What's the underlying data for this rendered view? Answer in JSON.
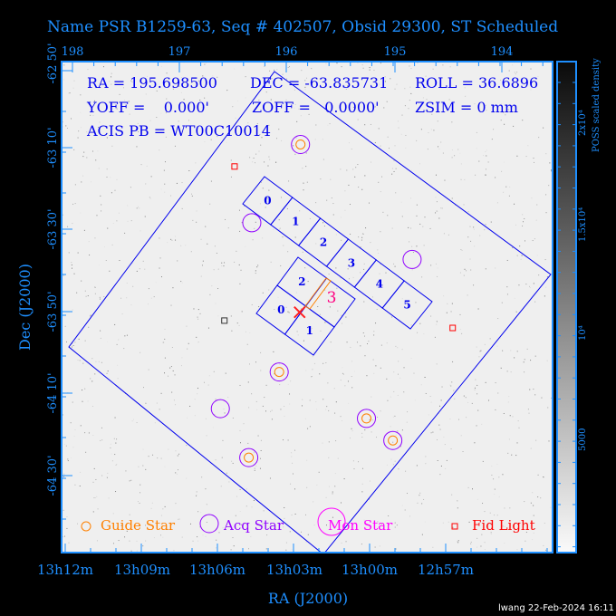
{
  "title": "Name PSR B1259-63, Seq # 402507, Obsid 29300, ST Scheduled",
  "info": {
    "ra": "RA = 195.698500",
    "dec": "DEC = -63.835731",
    "roll": "ROLL = 36.6896",
    "yoff": "YOFF =    0.000'",
    "zoff": "ZOFF =   0.0000'",
    "zsim": "ZSIM = 0 mm",
    "acis_pb": "ACIS PB = WT00C10014"
  },
  "footer": "lwang 22-Feb-2024 16:11",
  "colors": {
    "axis": "#1e8fff",
    "fov": "#0000ee",
    "guide": "#ff8000",
    "acq": "#9000ff",
    "mon": "#ff00ff",
    "fid": "#ff0000"
  },
  "chart_data": {
    "type": "scatter",
    "title": "Name PSR B1259-63, Seq # 402507, Obsid 29300, ST Scheduled",
    "xlabel": "RA (J2000)",
    "ylabel": "Dec (J2000)",
    "x_ticks_bottom": [
      "13h12m",
      "13h09m",
      "13h06m",
      "13h03m",
      "13h00m",
      "12h57m"
    ],
    "x_ticks_top": [
      "198",
      "197",
      "196",
      "195",
      "194"
    ],
    "y_ticks": [
      "-62 50'",
      "-63 10'",
      "-63 30'",
      "-63 50'",
      "-64 10'",
      "-64 30'"
    ],
    "colorbar": {
      "label": "POSS scaled density",
      "ticks": [
        "2x10⁴",
        "1.5x10⁴",
        "10⁴",
        "5000"
      ]
    },
    "legend": {
      "placement": "bottom",
      "items": [
        "Guide Star",
        "Acq Star",
        "Mon Star",
        "Fid Light"
      ]
    },
    "target": {
      "ra": 195.6985,
      "dec": -63.835731
    },
    "guide_stars": [
      {
        "ra": 195.69,
        "dec": -63.15
      },
      {
        "ra": 195.9,
        "dec": -64.08
      },
      {
        "ra": 195.04,
        "dec": -64.27
      },
      {
        "ra": 194.78,
        "dec": -64.36
      },
      {
        "ra": 196.2,
        "dec": -64.43
      }
    ],
    "acq_stars": [
      {
        "ra": 196.17,
        "dec": -63.47
      },
      {
        "ra": 194.59,
        "dec": -63.62
      },
      {
        "ra": 196.48,
        "dec": -64.23
      }
    ],
    "fid_lights": [
      {
        "ra": 196.34,
        "dec": -63.24
      },
      {
        "ra": 194.19,
        "dec": -63.9
      }
    ],
    "other_markers": [
      {
        "ra": 196.44,
        "dec": -63.87
      }
    ],
    "acis_s_chips": [
      "0",
      "1",
      "2",
      "3",
      "4",
      "5"
    ],
    "acis_i_chips": [
      "0",
      "1",
      "2",
      "3"
    ]
  }
}
